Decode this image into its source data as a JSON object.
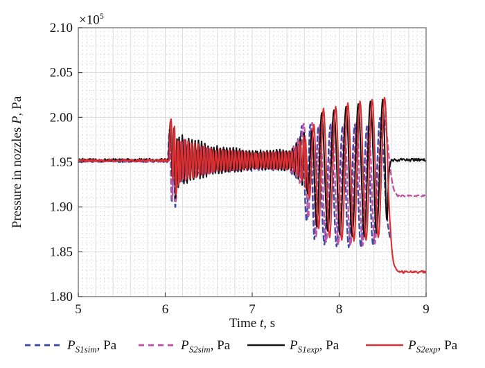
{
  "figure": {
    "background": "#ffffff",
    "offset_parts": {
      "base": "×10",
      "exp": "5"
    }
  },
  "chart_data": {
    "type": "line",
    "title": "",
    "xlabel_parts": [
      {
        "text": "Time ",
        "italic": false
      },
      {
        "text": "t",
        "italic": true
      },
      {
        "text": ", s",
        "italic": false
      }
    ],
    "ylabel_parts": [
      {
        "text": "Pressure in nozzles ",
        "italic": false
      },
      {
        "text": "P",
        "italic": true
      },
      {
        "text": ", Pa",
        "italic": false
      }
    ],
    "y_offset_text": "×10⁵",
    "units": "Pa × 10^5",
    "xlim": [
      5,
      9
    ],
    "ylim": [
      1.8,
      2.1
    ],
    "x_ticks": [
      {
        "v": 5,
        "label": "5"
      },
      {
        "v": 6,
        "label": "6"
      },
      {
        "v": 7,
        "label": "7"
      },
      {
        "v": 8,
        "label": "8"
      },
      {
        "v": 9,
        "label": "9"
      }
    ],
    "y_ticks": [
      {
        "v": 1.8,
        "label": "1.80"
      },
      {
        "v": 1.85,
        "label": "1.85"
      },
      {
        "v": 1.9,
        "label": "1.90"
      },
      {
        "v": 1.95,
        "label": "1.95"
      },
      {
        "v": 2.0,
        "label": "2.00"
      },
      {
        "v": 2.05,
        "label": "2.05"
      },
      {
        "v": 2.1,
        "label": "2.10"
      }
    ],
    "grid": {
      "x_major": 0.2,
      "x_minor": 0.05,
      "y_major": 0.05,
      "y_minor": 0.01,
      "major_color": "#dadada",
      "minor_color": "#c2c2c2"
    },
    "axis_color": "#6f6f6f",
    "tick_color": "#444444",
    "legend_position": "bottom",
    "series": [
      {
        "id": "S1sim",
        "legend": {
          "p": "P",
          "sub": "S1sim",
          "rest": ", Pa"
        },
        "color": "#3f4da6",
        "dashed": true,
        "width": 2.4,
        "segments": [
          {
            "type": "noisy",
            "t0": 5.0,
            "t1": 6.03,
            "v": 1.951,
            "noise": 0.0012,
            "seed": 31
          },
          {
            "type": "points",
            "pts": [
              [
                6.03,
                1.951
              ],
              [
                6.052,
                1.985
              ],
              [
                6.075,
                1.905
              ],
              [
                6.095,
                1.965
              ],
              [
                6.115,
                1.9
              ],
              [
                6.135,
                1.952
              ]
            ]
          },
          {
            "type": "hf",
            "t0": 6.135,
            "t1": 6.55,
            "c": 1.951,
            "a0": 0.024,
            "a1": 0.013,
            "f": 24,
            "ph": 0.9
          },
          {
            "type": "hf",
            "t0": 6.55,
            "t1": 7.05,
            "c": 1.951,
            "a0": 0.013,
            "a1": 0.0095,
            "f": 24,
            "ph": 0.9
          },
          {
            "type": "hf",
            "t0": 7.05,
            "t1": 7.42,
            "c": 1.951,
            "a0": 0.0095,
            "a1": 0.01,
            "f": 24,
            "ph": 0.9
          },
          {
            "type": "hf",
            "t0": 7.42,
            "t1": 7.545,
            "c": 1.951,
            "a0": 0.01,
            "a1": 0.026,
            "f": 20,
            "ph": 0.5
          },
          {
            "type": "points",
            "pts": [
              [
                7.545,
                1.96
              ],
              [
                7.578,
                1.988
              ],
              [
                7.625,
                1.884
              ],
              [
                7.668,
                1.992
              ],
              [
                7.715,
                1.864
              ],
              [
                7.76,
                1.99
              ],
              [
                7.83,
                1.858
              ],
              [
                7.9,
                1.992
              ],
              [
                7.97,
                1.856
              ],
              [
                8.04,
                1.99
              ],
              [
                8.11,
                1.855
              ],
              [
                8.18,
                1.992
              ],
              [
                8.25,
                1.855
              ],
              [
                8.32,
                1.99
              ],
              [
                8.39,
                1.857
              ],
              [
                8.46,
                1.993
              ],
              [
                8.5,
                1.97
              ],
              [
                8.54,
                1.9
              ],
              [
                8.58,
                1.868
              ],
              [
                8.6,
                1.865
              ]
            ]
          }
        ]
      },
      {
        "id": "S2sim",
        "legend": {
          "p": "P",
          "sub": "S2sim",
          "rest": ", Pa"
        },
        "color": "#c155a6",
        "dashed": true,
        "width": 2.4,
        "segments": [
          {
            "type": "noisy",
            "t0": 5.0,
            "t1": 6.035,
            "v": 1.9515,
            "noise": 0.0012,
            "seed": 41
          },
          {
            "type": "points",
            "pts": [
              [
                6.035,
                1.9515
              ],
              [
                6.058,
                1.987
              ],
              [
                6.08,
                1.908
              ],
              [
                6.1,
                1.968
              ],
              [
                6.12,
                1.905
              ],
              [
                6.14,
                1.954
              ]
            ]
          },
          {
            "type": "hf",
            "t0": 6.14,
            "t1": 6.55,
            "c": 1.9515,
            "a0": 0.0235,
            "a1": 0.0125,
            "f": 24,
            "ph": 2.4
          },
          {
            "type": "hf",
            "t0": 6.55,
            "t1": 7.05,
            "c": 1.9515,
            "a0": 0.0125,
            "a1": 0.0095,
            "f": 24,
            "ph": 2.4
          },
          {
            "type": "hf",
            "t0": 7.05,
            "t1": 7.42,
            "c": 1.9515,
            "a0": 0.0095,
            "a1": 0.01,
            "f": 24,
            "ph": 2.4
          },
          {
            "type": "hf",
            "t0": 7.42,
            "t1": 7.56,
            "c": 1.9515,
            "a0": 0.01,
            "a1": 0.027,
            "f": 20,
            "ph": 1.2
          },
          {
            "type": "points",
            "pts": [
              [
                7.56,
                1.965
              ],
              [
                7.6,
                1.99
              ],
              [
                7.645,
                1.888
              ],
              [
                7.69,
                1.994
              ],
              [
                7.735,
                1.867
              ],
              [
                7.78,
                1.992
              ],
              [
                7.85,
                1.861
              ],
              [
                7.92,
                1.994
              ],
              [
                7.99,
                1.858
              ],
              [
                8.06,
                1.992
              ],
              [
                8.13,
                1.857
              ],
              [
                8.2,
                1.994
              ],
              [
                8.27,
                1.857
              ],
              [
                8.34,
                1.992
              ],
              [
                8.41,
                1.859
              ],
              [
                8.48,
                1.995
              ],
              [
                8.535,
                1.99
              ],
              [
                8.585,
                1.945
              ],
              [
                8.625,
                1.921
              ],
              [
                8.665,
                1.9135
              ]
            ]
          },
          {
            "type": "noisy",
            "t0": 8.665,
            "t1": 9.0,
            "v": 1.9125,
            "noise": 0.0008,
            "seed": 42
          }
        ]
      },
      {
        "id": "S1exp",
        "legend": {
          "p": "P",
          "sub": "S1exp",
          "rest": ", Pa"
        },
        "color": "#111111",
        "dashed": false,
        "width": 2.1,
        "segments": [
          {
            "type": "noisy",
            "t0": 5.0,
            "t1": 6.04,
            "v": 1.9525,
            "noise": 0.0016,
            "seed": 11
          },
          {
            "type": "points",
            "pts": [
              [
                6.04,
                1.9525
              ],
              [
                6.062,
                1.996
              ],
              [
                6.082,
                1.934
              ],
              [
                6.1,
                1.988
              ],
              [
                6.118,
                1.91
              ],
              [
                6.135,
                1.976
              ],
              [
                6.15,
                1.922
              ]
            ]
          },
          {
            "type": "hf",
            "t0": 6.15,
            "t1": 6.55,
            "c": 1.9525,
            "a0": 0.027,
            "a1": 0.015,
            "f": 27,
            "ph": 0.0
          },
          {
            "type": "hf",
            "t0": 6.55,
            "t1": 7.05,
            "c": 1.9525,
            "a0": 0.015,
            "a1": 0.01,
            "f": 27,
            "ph": 0.0
          },
          {
            "type": "hf",
            "t0": 7.05,
            "t1": 7.45,
            "c": 1.9525,
            "a0": 0.01,
            "a1": 0.011,
            "f": 27,
            "ph": 0.0
          },
          {
            "type": "hf",
            "t0": 7.45,
            "t1": 7.6,
            "c": 1.9525,
            "a0": 0.011,
            "a1": 0.03,
            "f": 22,
            "ph": 0.0
          },
          {
            "type": "points",
            "pts": [
              [
                7.6,
                1.97
              ],
              [
                7.64,
                1.915
              ],
              [
                7.69,
                1.985
              ],
              [
                7.745,
                1.878
              ],
              [
                7.8,
                2.005
              ],
              [
                7.87,
                1.873
              ],
              [
                7.94,
                2.008
              ],
              [
                8.01,
                1.869
              ],
              [
                8.08,
                2.012
              ],
              [
                8.15,
                1.867
              ],
              [
                8.22,
                2.015
              ],
              [
                8.29,
                1.867
              ],
              [
                8.36,
                2.018
              ],
              [
                8.43,
                1.871
              ],
              [
                8.5,
                2.02
              ],
              [
                8.545,
                1.888
              ],
              [
                8.572,
                1.938
              ],
              [
                8.6,
                1.9525
              ]
            ]
          },
          {
            "type": "noisy",
            "t0": 8.6,
            "t1": 9.0,
            "v": 1.9525,
            "noise": 0.0016,
            "seed": 12
          }
        ]
      },
      {
        "id": "S2exp",
        "legend": {
          "p": "P",
          "sub": "S2exp",
          "rest": ", Pa"
        },
        "color": "#da2f33",
        "dashed": false,
        "width": 2.1,
        "segments": [
          {
            "type": "noisy",
            "t0": 5.0,
            "t1": 6.045,
            "v": 1.952,
            "noise": 0.0014,
            "seed": 21
          },
          {
            "type": "points",
            "pts": [
              [
                6.045,
                1.952
              ],
              [
                6.068,
                1.998
              ],
              [
                6.088,
                1.93
              ],
              [
                6.106,
                1.99
              ],
              [
                6.124,
                1.914
              ],
              [
                6.14,
                1.974
              ],
              [
                6.155,
                1.924
              ]
            ]
          },
          {
            "type": "hf",
            "t0": 6.155,
            "t1": 6.55,
            "c": 1.952,
            "a0": 0.025,
            "a1": 0.013,
            "f": 27,
            "ph": 1.9
          },
          {
            "type": "hf",
            "t0": 6.55,
            "t1": 7.05,
            "c": 1.952,
            "a0": 0.013,
            "a1": 0.009,
            "f": 27,
            "ph": 1.9
          },
          {
            "type": "hf",
            "t0": 7.05,
            "t1": 7.45,
            "c": 1.952,
            "a0": 0.009,
            "a1": 0.01,
            "f": 27,
            "ph": 1.9
          },
          {
            "type": "hf",
            "t0": 7.45,
            "t1": 7.615,
            "c": 1.952,
            "a0": 0.01,
            "a1": 0.028,
            "f": 22,
            "ph": 0.8
          },
          {
            "type": "points",
            "pts": [
              [
                7.615,
                1.975
              ],
              [
                7.66,
                1.91
              ],
              [
                7.71,
                1.992
              ],
              [
                7.765,
                1.876
              ],
              [
                7.82,
                2.01
              ],
              [
                7.89,
                1.866
              ],
              [
                7.96,
                2.012
              ],
              [
                8.03,
                1.863
              ],
              [
                8.1,
                2.016
              ],
              [
                8.17,
                1.862
              ],
              [
                8.24,
                2.018
              ],
              [
                8.31,
                1.863
              ],
              [
                8.38,
                2.02
              ],
              [
                8.45,
                1.866
              ],
              [
                8.52,
                2.022
              ],
              [
                8.575,
                1.9
              ],
              [
                8.615,
                1.845
              ],
              [
                8.655,
                1.831
              ],
              [
                8.69,
                1.8275
              ]
            ]
          },
          {
            "type": "noisy",
            "t0": 8.69,
            "t1": 9.0,
            "v": 1.8275,
            "noise": 0.0014,
            "seed": 22
          }
        ]
      }
    ]
  }
}
